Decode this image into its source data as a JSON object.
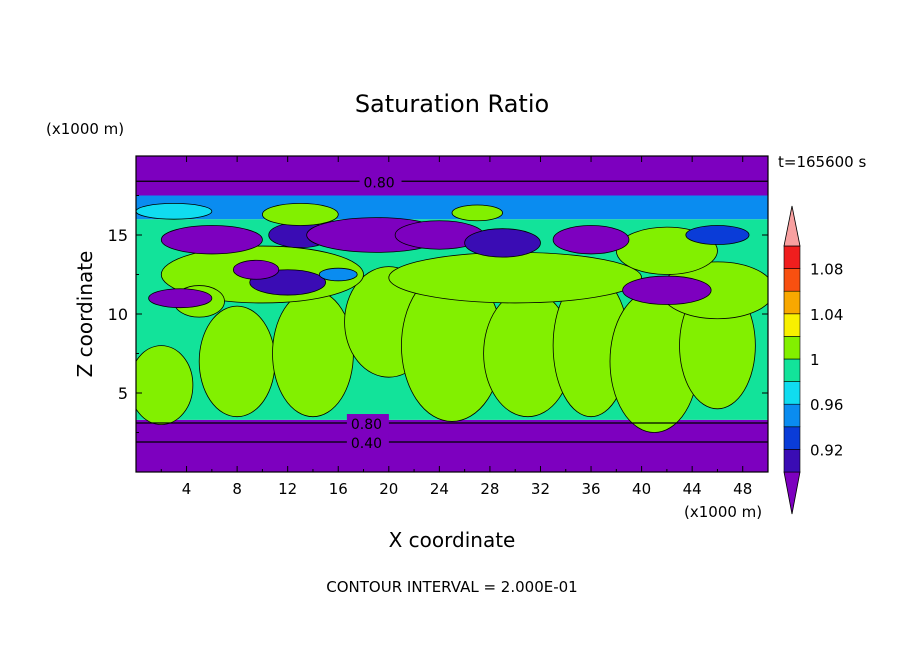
{
  "chart_data": {
    "type": "heatmap",
    "title": "Saturation Ratio",
    "xlabel": "X coordinate",
    "ylabel": "Z coordinate",
    "x_unit": "(x1000 m)",
    "y_unit": "(x1000 m)",
    "time_label": "t=165600 s",
    "footer": "CONTOUR INTERVAL = 2.000E-01",
    "xlim": [
      0,
      50
    ],
    "ylim": [
      0,
      20
    ],
    "x_ticks": [
      "4",
      "8",
      "12",
      "16",
      "20",
      "24",
      "28",
      "32",
      "36",
      "40",
      "44",
      "48"
    ],
    "y_ticks": [
      "5",
      "10",
      "15"
    ],
    "contour_labels": [
      "0.80",
      "0.80",
      "0.40"
    ],
    "colorbar": {
      "levels": [
        0.9,
        0.92,
        0.94,
        0.96,
        0.98,
        1.0,
        1.02,
        1.04,
        1.06,
        1.08,
        1.1
      ],
      "tick_labels": [
        "0.92",
        "0.96",
        "1",
        "1.04",
        "1.08"
      ],
      "colors": [
        "#7d00bf",
        "#3a0cb4",
        "#0a3cd8",
        "#0a8cf0",
        "#10dcf0",
        "#12e39a",
        "#82f000",
        "#f8f000",
        "#f8a800",
        "#f85010",
        "#f01e1e",
        "#f8a0a0"
      ],
      "extend": "both"
    },
    "fields": {
      "bands": [
        {
          "z_from": 0.0,
          "z_to": 3.3,
          "value": 0.4,
          "color_index": 0
        },
        {
          "z_from": 3.3,
          "z_to": 16.0,
          "value": 0.99,
          "color_index": 5
        },
        {
          "z_from": 16.0,
          "z_to": 17.5,
          "value": 0.93,
          "color_index": 3
        },
        {
          "z_from": 17.5,
          "z_to": 20.0,
          "value": 0.8,
          "color_index": 0
        }
      ],
      "blobs": [
        {
          "x": 2,
          "z": 5.5,
          "rx": 2.5,
          "rz": 2.5,
          "color_index": 6
        },
        {
          "x": 8,
          "z": 7.0,
          "rx": 3.0,
          "rz": 3.5,
          "color_index": 6
        },
        {
          "x": 14,
          "z": 7.5,
          "rx": 3.2,
          "rz": 4.0,
          "color_index": 6
        },
        {
          "x": 20,
          "z": 9.5,
          "rx": 3.5,
          "rz": 3.5,
          "color_index": 6
        },
        {
          "x": 25,
          "z": 8.0,
          "rx": 4.0,
          "rz": 4.8,
          "color_index": 6
        },
        {
          "x": 31,
          "z": 7.5,
          "rx": 3.5,
          "rz": 4.0,
          "color_index": 6
        },
        {
          "x": 36,
          "z": 8.0,
          "rx": 3.0,
          "rz": 4.5,
          "color_index": 6
        },
        {
          "x": 41,
          "z": 7.0,
          "rx": 3.5,
          "rz": 4.5,
          "color_index": 6
        },
        {
          "x": 46,
          "z": 8.0,
          "rx": 3.0,
          "rz": 4.0,
          "color_index": 6
        },
        {
          "x": 10,
          "z": 12.5,
          "rx": 8.0,
          "rz": 1.8,
          "color_index": 6
        },
        {
          "x": 30,
          "z": 12.3,
          "rx": 10.0,
          "rz": 1.6,
          "color_index": 6
        },
        {
          "x": 46,
          "z": 11.5,
          "rx": 4.5,
          "rz": 1.8,
          "color_index": 6
        },
        {
          "x": 42,
          "z": 14.0,
          "rx": 4.0,
          "rz": 1.5,
          "color_index": 6
        },
        {
          "x": 5,
          "z": 10.8,
          "rx": 2.0,
          "rz": 1.0,
          "color_index": 6
        },
        {
          "x": 12,
          "z": 12.0,
          "rx": 3.0,
          "rz": 0.8,
          "color_index": 1
        },
        {
          "x": 9.5,
          "z": 12.8,
          "rx": 1.8,
          "rz": 0.6,
          "color_index": 0
        },
        {
          "x": 6,
          "z": 14.7,
          "rx": 4.0,
          "rz": 0.9,
          "color_index": 0
        },
        {
          "x": 13,
          "z": 15.0,
          "rx": 2.5,
          "rz": 0.8,
          "color_index": 1
        },
        {
          "x": 19,
          "z": 15.0,
          "rx": 5.5,
          "rz": 1.1,
          "color_index": 0
        },
        {
          "x": 24,
          "z": 15.0,
          "rx": 3.5,
          "rz": 0.9,
          "color_index": 0
        },
        {
          "x": 29,
          "z": 14.5,
          "rx": 3.0,
          "rz": 0.9,
          "color_index": 1
        },
        {
          "x": 36,
          "z": 14.7,
          "rx": 3.0,
          "rz": 0.9,
          "color_index": 0
        },
        {
          "x": 42,
          "z": 11.5,
          "rx": 3.5,
          "rz": 0.9,
          "color_index": 0
        },
        {
          "x": 3.5,
          "z": 11.0,
          "rx": 2.5,
          "rz": 0.6,
          "color_index": 0
        },
        {
          "x": 16,
          "z": 12.5,
          "rx": 1.5,
          "rz": 0.4,
          "color_index": 3
        },
        {
          "x": 46,
          "z": 15.0,
          "rx": 2.5,
          "rz": 0.6,
          "color_index": 2
        },
        {
          "x": 3,
          "z": 16.5,
          "rx": 3.0,
          "rz": 0.5,
          "color_index": 4
        },
        {
          "x": 13,
          "z": 16.3,
          "rx": 3.0,
          "rz": 0.7,
          "color_index": 6
        },
        {
          "x": 27,
          "z": 16.4,
          "rx": 2.0,
          "rz": 0.5,
          "color_index": 6
        }
      ]
    }
  }
}
